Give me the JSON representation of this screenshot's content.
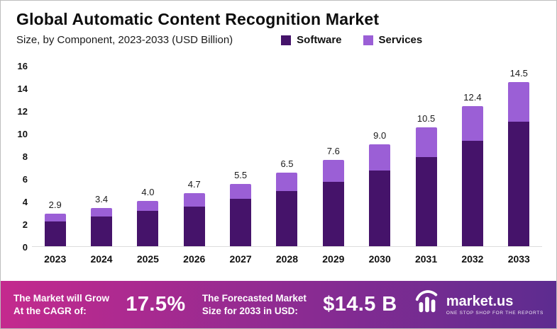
{
  "header": {
    "title": "Global Automatic Content Recognition Market",
    "subtitle": "Size, by Component, 2023-2033 (USD Billion)"
  },
  "legend": [
    {
      "label": "Software",
      "color": "#45136a"
    },
    {
      "label": "Services",
      "color": "#9b5fd6"
    }
  ],
  "chart_data": {
    "type": "bar",
    "stacked": true,
    "title": "Global Automatic Content Recognition Market Size, by Component, 2023-2033 (USD Billion)",
    "categories": [
      "2023",
      "2024",
      "2025",
      "2026",
      "2027",
      "2028",
      "2029",
      "2030",
      "2031",
      "2032",
      "2033"
    ],
    "series": [
      {
        "name": "Software",
        "color": "#45136a",
        "values": [
          2.2,
          2.6,
          3.1,
          3.5,
          4.2,
          4.9,
          5.7,
          6.7,
          7.9,
          9.3,
          11.0
        ]
      },
      {
        "name": "Services",
        "color": "#9b5fd6",
        "values": [
          0.7,
          0.8,
          0.9,
          1.2,
          1.3,
          1.6,
          1.9,
          2.3,
          2.6,
          3.1,
          3.5
        ]
      }
    ],
    "totals": [
      2.9,
      3.4,
      4.0,
      4.7,
      5.5,
      6.5,
      7.6,
      9.0,
      10.5,
      12.4,
      14.5
    ],
    "xlabel": "",
    "ylabel": "",
    "ylim": [
      0,
      16
    ],
    "yticks": [
      0,
      2,
      4,
      6,
      8,
      10,
      12,
      14,
      16
    ],
    "grid": false,
    "legend_position": "top"
  },
  "footer": {
    "cagr_label_line1": "The Market will Grow",
    "cagr_label_line2": "At the CAGR of:",
    "cagr_value": "17.5%",
    "forecast_label_line1": "The Forecasted Market",
    "forecast_label_line2": "Size for 2033 in USD:",
    "forecast_value": "$14.5 B",
    "brand": "market.us",
    "brand_tagline": "ONE STOP SHOP FOR THE REPORTS"
  }
}
